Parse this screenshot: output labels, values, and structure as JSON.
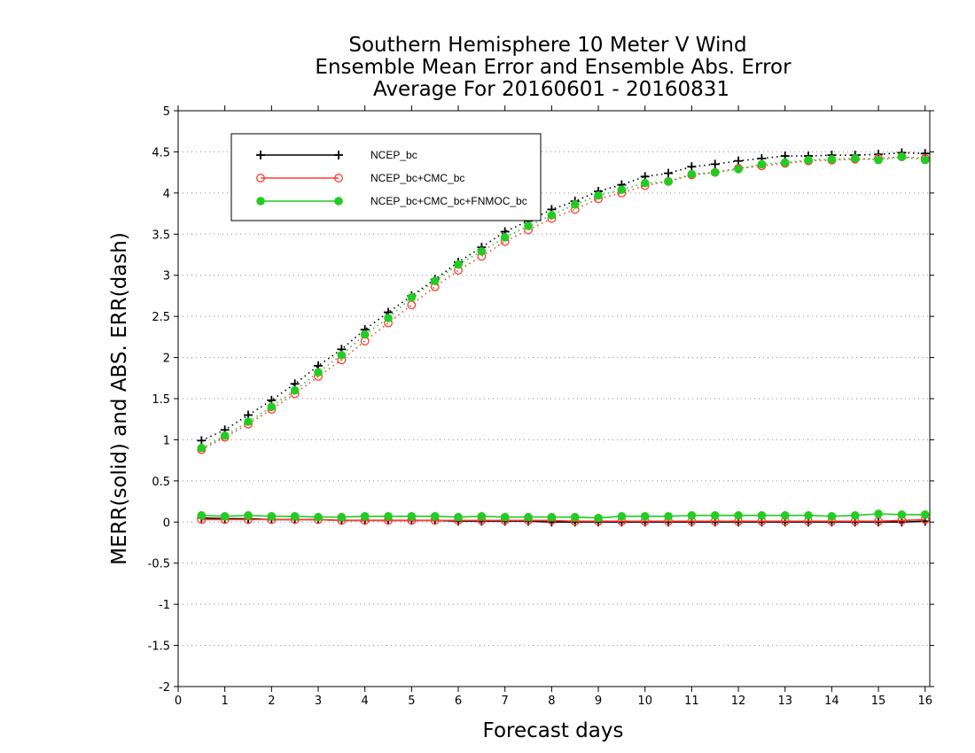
{
  "chart_data": {
    "type": "line",
    "title_lines": [
      "Southern Hemisphere 10 Meter V Wind",
      "Ensemble Mean Error and Ensemble Abs. Error",
      "Average For 20160601 - 20160831"
    ],
    "xlabel": "Forecast days",
    "ylabel": "MERR(solid) and ABS. ERR(dash)",
    "xlim": [
      0,
      16.1
    ],
    "ylim": [
      -2,
      5
    ],
    "xticks": [
      "0",
      "1",
      "2",
      "3",
      "4",
      "5",
      "6",
      "7",
      "8",
      "9",
      "10",
      "11",
      "12",
      "13",
      "14",
      "15",
      "16"
    ],
    "yticks": [
      "5",
      "4.5",
      "4",
      "3.5",
      "3",
      "2.5",
      "2",
      "1.5",
      "1",
      "0.5",
      "0",
      "-0.5",
      "-1",
      "-1.5",
      "-2"
    ],
    "grid": "horizontal dotted",
    "legend_position": "top-left",
    "x": [
      0.5,
      1,
      1.5,
      2,
      2.5,
      3,
      3.5,
      4,
      4.5,
      5,
      5.5,
      6,
      6.5,
      7,
      7.5,
      8,
      8.5,
      9,
      9.5,
      10,
      10.5,
      11,
      11.5,
      12,
      12.5,
      13,
      13.5,
      14,
      14.5,
      15,
      15.5,
      16
    ],
    "series": [
      {
        "name": "NCEP_bc",
        "color": "#000000",
        "marker": "plus",
        "merr": [
          0.05,
          0.04,
          0.04,
          0.03,
          0.03,
          0.03,
          0.02,
          0.02,
          0.02,
          0.02,
          0.02,
          0.01,
          0.01,
          0.01,
          0.01,
          0.0,
          0.0,
          0.0,
          0.0,
          0.0,
          0.0,
          0.0,
          0.0,
          0.0,
          0.0,
          0.0,
          0.0,
          0.0,
          0.0,
          0.0,
          0.0,
          0.01
        ],
        "abs_err": [
          0.99,
          1.12,
          1.3,
          1.48,
          1.68,
          1.9,
          2.1,
          2.34,
          2.55,
          2.75,
          2.95,
          3.16,
          3.34,
          3.53,
          3.66,
          3.8,
          3.9,
          4.02,
          4.1,
          4.2,
          4.24,
          4.32,
          4.35,
          4.39,
          4.42,
          4.45,
          4.45,
          4.46,
          4.46,
          4.47,
          4.49,
          4.48
        ]
      },
      {
        "name": "NCEP_bc+CMC_bc",
        "color": "#ff3b30",
        "marker": "open-circle",
        "merr": [
          0.03,
          0.03,
          0.03,
          0.03,
          0.03,
          0.03,
          0.02,
          0.02,
          0.02,
          0.02,
          0.02,
          0.02,
          0.02,
          0.02,
          0.02,
          0.02,
          0.01,
          0.01,
          0.01,
          0.01,
          0.01,
          0.01,
          0.01,
          0.01,
          0.01,
          0.01,
          0.01,
          0.01,
          0.01,
          0.01,
          0.02,
          0.03
        ],
        "abs_err": [
          0.88,
          1.03,
          1.19,
          1.37,
          1.56,
          1.77,
          1.97,
          2.2,
          2.42,
          2.64,
          2.86,
          3.06,
          3.23,
          3.41,
          3.55,
          3.69,
          3.8,
          3.93,
          4.0,
          4.09,
          4.14,
          4.22,
          4.25,
          4.3,
          4.33,
          4.36,
          4.39,
          4.4,
          4.41,
          4.42,
          4.44,
          4.42
        ]
      },
      {
        "name": "NCEP_bc+CMC_bc+FNMOC_bc",
        "color": "#22cc22",
        "marker": "filled-circle",
        "merr": [
          0.08,
          0.07,
          0.08,
          0.07,
          0.07,
          0.06,
          0.06,
          0.07,
          0.07,
          0.07,
          0.07,
          0.06,
          0.07,
          0.06,
          0.06,
          0.06,
          0.06,
          0.05,
          0.07,
          0.07,
          0.07,
          0.08,
          0.08,
          0.08,
          0.08,
          0.08,
          0.08,
          0.07,
          0.08,
          0.1,
          0.09,
          0.09
        ],
        "abs_err": [
          0.9,
          1.05,
          1.22,
          1.4,
          1.6,
          1.82,
          2.03,
          2.28,
          2.48,
          2.73,
          2.93,
          3.13,
          3.29,
          3.46,
          3.6,
          3.73,
          3.86,
          3.97,
          4.04,
          4.12,
          4.14,
          4.23,
          4.25,
          4.29,
          4.35,
          4.37,
          4.4,
          4.41,
          4.42,
          4.4,
          4.44,
          4.4
        ]
      }
    ]
  }
}
